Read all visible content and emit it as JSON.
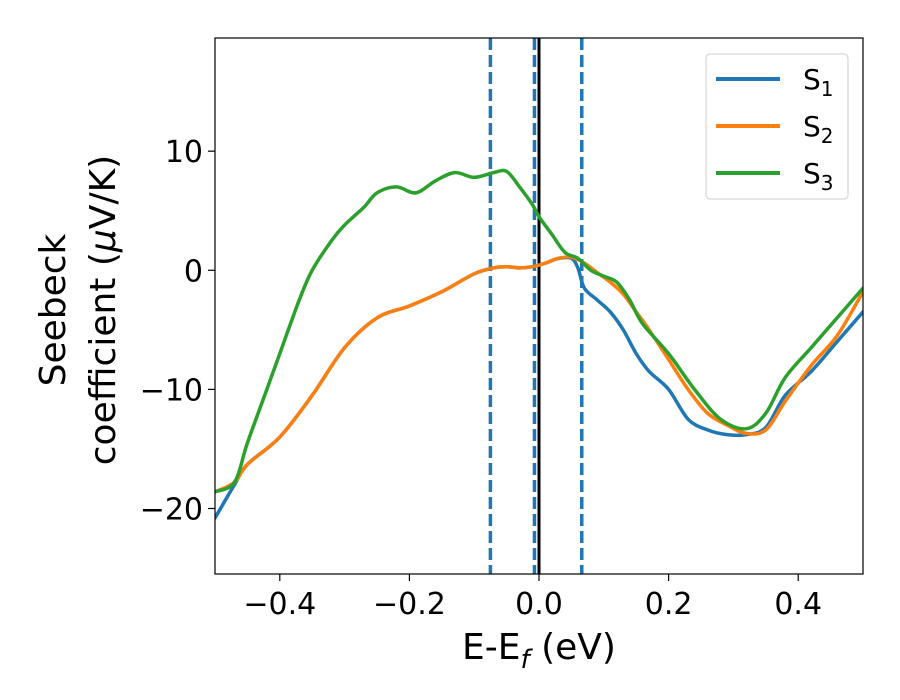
{
  "chart_data": {
    "type": "line",
    "xlabel": "E-E",
    "xlabel_sub": "f",
    "xlabel_unit": " (eV)",
    "ylabel_line1": "Seebeck",
    "ylabel_line2_prefix": "coefficient  (",
    "ylabel_mu": "μ",
    "ylabel_line2_suffix": "V/K)",
    "xlim": [
      -0.5,
      0.5
    ],
    "ylim": [
      -25.5,
      19.5
    ],
    "x_ticks": [
      -0.4,
      -0.2,
      0.0,
      0.2,
      0.4
    ],
    "x_tick_labels": [
      "−0.4",
      "−0.2",
      "0.0",
      "0.2",
      "0.4"
    ],
    "y_ticks": [
      -20,
      -10,
      0,
      10
    ],
    "y_tick_labels": [
      "−20",
      "−10",
      "0",
      "10"
    ],
    "grid": false,
    "legend_position": "top-right",
    "vertical_lines": [
      {
        "x": -0.075,
        "style": "dashed",
        "color": "#1f77b4"
      },
      {
        "x": -0.007,
        "style": "dashed",
        "color": "#1f77b4"
      },
      {
        "x": 0.066,
        "style": "dashed",
        "color": "#1f77b4"
      },
      {
        "x": 0.0,
        "style": "solid",
        "color": "#000000"
      }
    ],
    "series": [
      {
        "name": "S",
        "sub": "1",
        "color": "#1f77b4",
        "x": [
          -0.5,
          -0.47,
          -0.45,
          -0.4,
          -0.35,
          -0.3,
          -0.25,
          -0.2,
          -0.15,
          -0.1,
          -0.07,
          -0.05,
          -0.03,
          -0.01,
          0.01,
          0.03,
          0.05,
          0.06,
          0.07,
          0.09,
          0.11,
          0.13,
          0.15,
          0.17,
          0.2,
          0.23,
          0.26,
          0.29,
          0.32,
          0.35,
          0.38,
          0.42,
          0.46,
          0.5
        ],
        "y": [
          -20.8,
          -18.0,
          -16.3,
          -14.0,
          -10.5,
          -6.5,
          -4.0,
          -3.0,
          -1.8,
          -0.3,
          0.2,
          0.3,
          0.2,
          0.3,
          0.6,
          1.0,
          1.0,
          0.2,
          -1.5,
          -2.5,
          -3.5,
          -5.0,
          -7.0,
          -8.5,
          -10.0,
          -12.5,
          -13.4,
          -13.8,
          -13.8,
          -13.2,
          -10.5,
          -8.5,
          -6.0,
          -3.5
        ]
      },
      {
        "name": "S",
        "sub": "2",
        "color": "#ff7f0e",
        "x": [
          -0.5,
          -0.47,
          -0.45,
          -0.4,
          -0.35,
          -0.3,
          -0.25,
          -0.2,
          -0.15,
          -0.1,
          -0.07,
          -0.05,
          -0.03,
          -0.01,
          0.01,
          0.03,
          0.05,
          0.07,
          0.09,
          0.11,
          0.13,
          0.15,
          0.17,
          0.2,
          0.23,
          0.26,
          0.29,
          0.32,
          0.35,
          0.38,
          0.42,
          0.46,
          0.5
        ],
        "y": [
          -18.6,
          -17.8,
          -16.3,
          -14.0,
          -10.5,
          -6.5,
          -4.0,
          -3.0,
          -1.8,
          -0.3,
          0.2,
          0.3,
          0.2,
          0.3,
          0.6,
          1.0,
          1.1,
          0.6,
          -0.2,
          -1.0,
          -2.0,
          -3.5,
          -5.0,
          -7.5,
          -10.0,
          -12.0,
          -13.0,
          -13.7,
          -13.4,
          -11.0,
          -8.0,
          -5.5,
          -1.8
        ]
      },
      {
        "name": "S",
        "sub": "3",
        "color": "#2ca02c",
        "x": [
          -0.5,
          -0.47,
          -0.45,
          -0.42,
          -0.4,
          -0.37,
          -0.35,
          -0.32,
          -0.3,
          -0.27,
          -0.25,
          -0.22,
          -0.19,
          -0.16,
          -0.13,
          -0.1,
          -0.07,
          -0.05,
          -0.03,
          -0.01,
          0.0,
          0.02,
          0.04,
          0.06,
          0.08,
          0.1,
          0.12,
          0.14,
          0.16,
          0.2,
          0.24,
          0.28,
          0.32,
          0.35,
          0.38,
          0.42,
          0.46,
          0.5
        ],
        "y": [
          -18.6,
          -17.8,
          -14.5,
          -10.0,
          -7.0,
          -2.5,
          0.0,
          2.5,
          3.8,
          5.3,
          6.5,
          7.0,
          6.5,
          7.5,
          8.2,
          7.8,
          8.2,
          8.3,
          7.0,
          5.5,
          4.5,
          3.0,
          1.5,
          1.0,
          0.0,
          -0.5,
          -1.0,
          -2.5,
          -4.5,
          -7.0,
          -10.0,
          -12.5,
          -13.3,
          -12.0,
          -9.0,
          -6.5,
          -4.0,
          -1.5
        ]
      }
    ]
  }
}
